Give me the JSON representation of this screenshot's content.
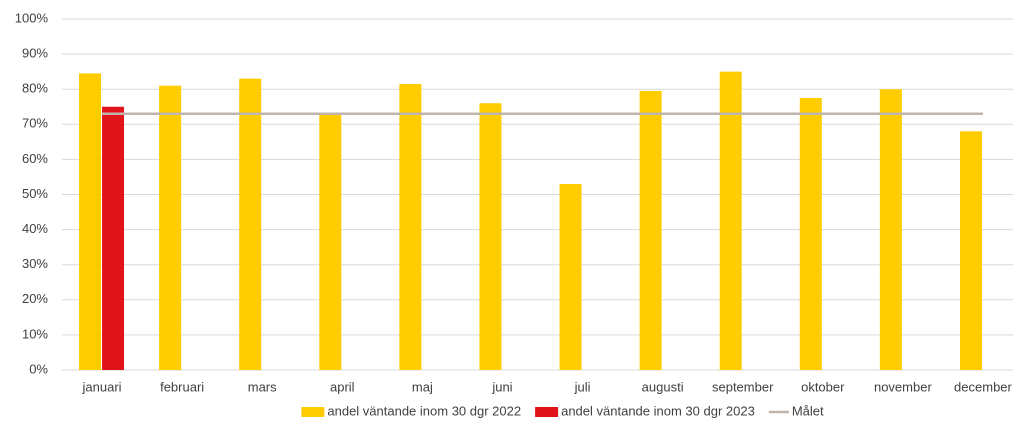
{
  "chart_data": {
    "type": "bar",
    "categories": [
      "januari",
      "februari",
      "mars",
      "april",
      "maj",
      "juni",
      "juli",
      "augusti",
      "september",
      "oktober",
      "november",
      "december"
    ],
    "series": [
      {
        "name": "andel väntande inom 30 dgr 2022",
        "color": "#ffcc00",
        "values": [
          84.5,
          81,
          83,
          73,
          81.5,
          76,
          53,
          79.5,
          85,
          77.5,
          80,
          68
        ]
      },
      {
        "name": "andel väntande inom 30 dgr 2023",
        "color": "#e2141b",
        "values": [
          75,
          null,
          null,
          null,
          null,
          null,
          null,
          null,
          null,
          null,
          null,
          null
        ]
      },
      {
        "name": "Målet",
        "color": "#bfb5ad",
        "type": "line",
        "values": [
          73,
          73,
          73,
          73,
          73,
          73,
          73,
          73,
          73,
          73,
          73,
          73
        ]
      }
    ],
    "ylim": [
      0,
      100
    ],
    "yticks": [
      {
        "value": 0,
        "label": "0%"
      },
      {
        "value": 10,
        "label": "10%"
      },
      {
        "value": 20,
        "label": "20%"
      },
      {
        "value": 30,
        "label": "30%"
      },
      {
        "value": 40,
        "label": "40%"
      },
      {
        "value": 50,
        "label": "50%"
      },
      {
        "value": 60,
        "label": "60%"
      },
      {
        "value": 70,
        "label": "70%"
      },
      {
        "value": 80,
        "label": "80%"
      },
      {
        "value": 90,
        "label": "90%"
      },
      {
        "value": 100,
        "label": "100%"
      }
    ],
    "grid": true,
    "legend": "bottom"
  }
}
